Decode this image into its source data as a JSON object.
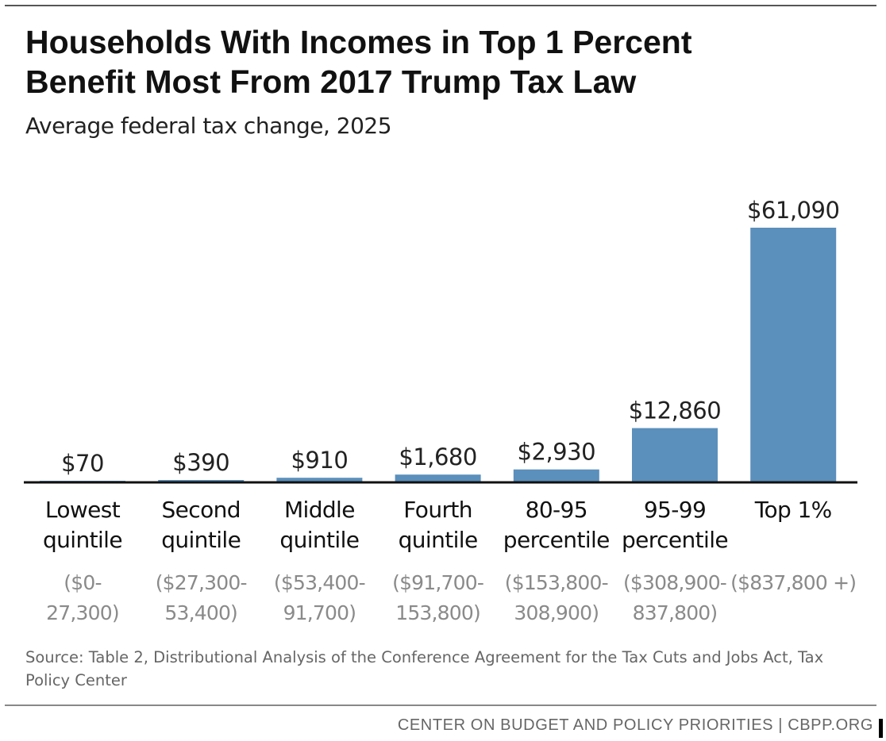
{
  "title_lines": [
    "Households With Incomes in Top 1 Percent",
    "Benefit Most From 2017 Trump Tax Law"
  ],
  "subtitle": "Average federal tax change, 2025",
  "chart_data": {
    "type": "bar",
    "title": "Households With Incomes in Top 1 Percent Benefit Most From 2017 Trump Tax Law",
    "subtitle": "Average federal tax change, 2025",
    "categories": [
      {
        "name": [
          "Lowest",
          "quintile"
        ],
        "range": [
          "($0-",
          "27,300)"
        ]
      },
      {
        "name": [
          "Second",
          "quintile"
        ],
        "range": [
          "($27,300-",
          "53,400)"
        ]
      },
      {
        "name": [
          "Middle",
          "quintile"
        ],
        "range": [
          "($53,400-",
          "91,700)"
        ]
      },
      {
        "name": [
          "Fourth",
          "quintile"
        ],
        "range": [
          "($91,700-",
          "153,800)"
        ]
      },
      {
        "name": [
          "80-95",
          "percentile"
        ],
        "range": [
          "($153,800-",
          "308,900)"
        ]
      },
      {
        "name": [
          "95-99",
          "percentile"
        ],
        "range": [
          "($308,900-",
          "837,800)"
        ]
      },
      {
        "name": [
          "Top 1%"
        ],
        "range": [
          "($837,800 +)"
        ]
      }
    ],
    "values": [
      70,
      390,
      910,
      1680,
      2930,
      12860,
      61090
    ],
    "value_labels": [
      "$70",
      "$390",
      "$910",
      "$1,680",
      "$2,930",
      "$12,860",
      "$61,090"
    ],
    "ylim": [
      0,
      61090
    ],
    "xlabel": "",
    "ylabel": "",
    "grid": false,
    "legend": "none",
    "colors": {
      "bar": "#5b8fbc",
      "baseline": "#111111",
      "value_label": "#222222",
      "category_label": "#111111",
      "range_label": "#8a8a8a"
    }
  },
  "source": "Source: Table 2, Distributional Analysis of the Conference Agreement for the Tax Cuts and Jobs Act, Tax Policy Center",
  "footer": "CENTER ON BUDGET AND POLICY PRIORITIES | CBPP.ORG"
}
